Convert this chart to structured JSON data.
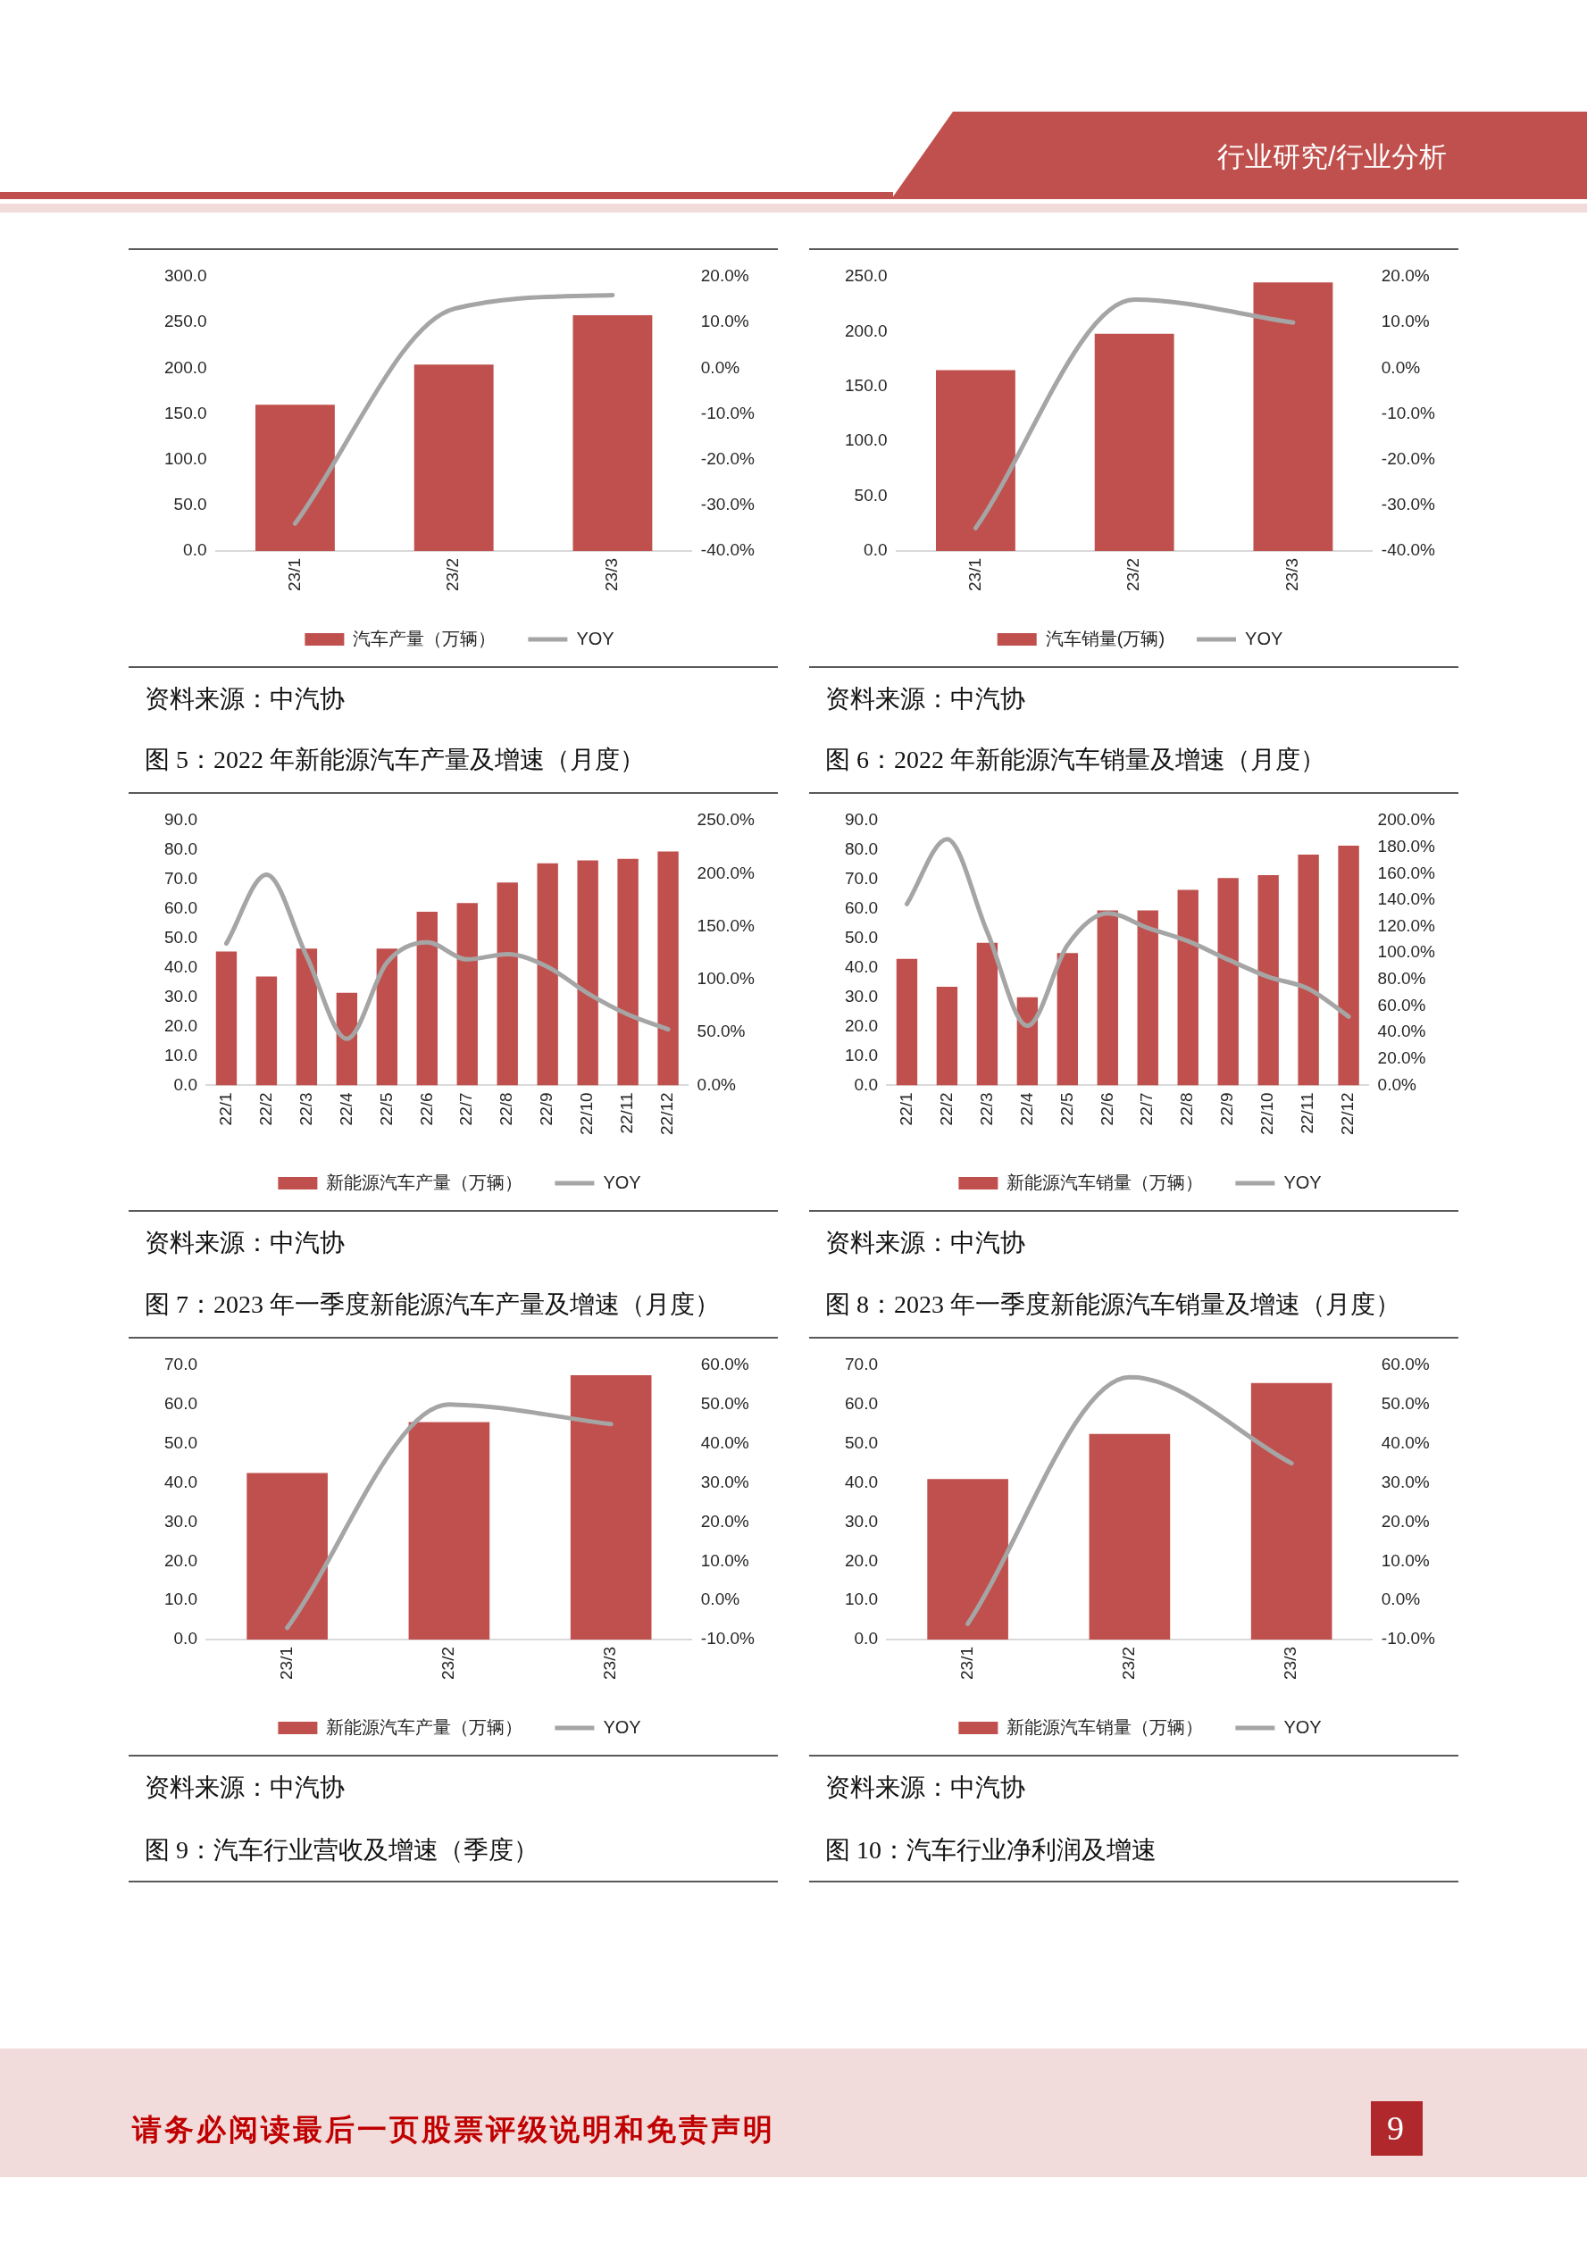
{
  "chart_data": [
    {
      "type": "bar",
      "categories": [
        "23/1",
        "23/2",
        "23/3"
      ],
      "series": [
        {
          "name": "汽车产量（万辆）",
          "color": "#c0504d",
          "values": [
            160,
            204,
            258
          ]
        },
        {
          "name": "YOY",
          "type": "line",
          "color": "#a5a5a5",
          "axis": "y2",
          "values": [
            -34,
            13,
            16
          ]
        }
      ],
      "ylim": [
        0,
        300
      ],
      "yticks": [
        {
          "value": 0,
          "label": "0.0"
        },
        {
          "value": 50,
          "label": "50.0"
        },
        {
          "value": 100,
          "label": "100.0"
        },
        {
          "value": 150,
          "label": "150.0"
        },
        {
          "value": 200,
          "label": "200.0"
        },
        {
          "value": 250,
          "label": "250.0"
        },
        {
          "value": 300,
          "label": "300.0"
        }
      ],
      "y2lim": [
        -40,
        20
      ],
      "y2ticks": [
        {
          "value": -40,
          "label": "-40.0%"
        },
        {
          "value": -30,
          "label": "-30.0%"
        },
        {
          "value": -20,
          "label": "-20.0%"
        },
        {
          "value": -10,
          "label": "-10.0%"
        },
        {
          "value": 0,
          "label": "0.0%"
        },
        {
          "value": 10,
          "label": "10.0%"
        },
        {
          "value": 20,
          "label": "20.0%"
        }
      ],
      "legend": "bottom",
      "marker": "none",
      "annotations": [
        "资料来源：中汽协",
        "行业研究/行业分析",
        "请务必阅读最后一页股票评级说明和免责声明",
        "9"
      ]
    },
    {
      "type": "bar",
      "categories": [
        "23/1",
        "23/2",
        "23/3"
      ],
      "series": [
        {
          "name": "汽车销量(万辆)",
          "color": "#c0504d",
          "values": [
            165,
            198,
            245
          ]
        },
        {
          "name": "YOY",
          "type": "line",
          "color": "#a5a5a5",
          "axis": "y2",
          "values": [
            -35,
            15,
            10
          ]
        }
      ],
      "ylim": [
        0,
        250
      ],
      "yticks": [
        {
          "value": 0,
          "label": "0.0"
        },
        {
          "value": 50,
          "label": "50.0"
        },
        {
          "value": 100,
          "label": "100.0"
        },
        {
          "value": 150,
          "label": "150.0"
        },
        {
          "value": 200,
          "label": "200.0"
        },
        {
          "value": 250,
          "label": "250.0"
        }
      ],
      "y2lim": [
        -40,
        20
      ],
      "y2ticks": [
        {
          "value": -40,
          "label": "-40.0%"
        },
        {
          "value": -30,
          "label": "-30.0%"
        },
        {
          "value": -20,
          "label": "-20.0%"
        },
        {
          "value": -10,
          "label": "-10.0%"
        },
        {
          "value": 0,
          "label": "0.0%"
        },
        {
          "value": 10,
          "label": "10.0%"
        },
        {
          "value": 20,
          "label": "20.0%"
        }
      ],
      "legend": "bottom",
      "marker": "none",
      "annotations": [
        "资料来源：中汽协"
      ]
    },
    {
      "type": "bar",
      "title": "图 5：2022 年新能源汽车产量及增速（月度）",
      "categories": [
        "22/1",
        "22/2",
        "22/3",
        "22/4",
        "22/5",
        "22/6",
        "22/7",
        "22/8",
        "22/9",
        "22/10",
        "22/11",
        "22/12"
      ],
      "series": [
        {
          "name": "新能源汽车产量（万辆）",
          "color": "#c0504d",
          "values": [
            45.5,
            37,
            46.5,
            31.5,
            46.5,
            59,
            62,
            69,
            75.5,
            76.5,
            77,
            79.5
          ]
        },
        {
          "name": "YOY",
          "type": "line",
          "color": "#a5a5a5",
          "axis": "y2",
          "values": [
            134,
            199,
            122,
            44,
            116,
            135,
            119,
            124,
            112,
            87,
            67,
            53
          ]
        }
      ],
      "ylim": [
        0,
        90
      ],
      "yticks": [
        {
          "value": 0,
          "label": "0.0"
        },
        {
          "value": 10,
          "label": "10.0"
        },
        {
          "value": 20,
          "label": "20.0"
        },
        {
          "value": 30,
          "label": "30.0"
        },
        {
          "value": 40,
          "label": "40.0"
        },
        {
          "value": 50,
          "label": "50.0"
        },
        {
          "value": 60,
          "label": "60.0"
        },
        {
          "value": 70,
          "label": "70.0"
        },
        {
          "value": 80,
          "label": "80.0"
        },
        {
          "value": 90,
          "label": "90.0"
        }
      ],
      "y2lim": [
        0,
        250
      ],
      "y2ticks": [
        {
          "value": 0,
          "label": "0.0%"
        },
        {
          "value": 50,
          "label": "50.0%"
        },
        {
          "value": 100,
          "label": "100.0%"
        },
        {
          "value": 150,
          "label": "150.0%"
        },
        {
          "value": 200,
          "label": "200.0%"
        },
        {
          "value": 250,
          "label": "250.0%"
        }
      ],
      "legend": "bottom",
      "marker": "none",
      "annotations": [
        "资料来源：中汽协"
      ]
    },
    {
      "type": "bar",
      "title": "图 6：2022 年新能源汽车销量及增速（月度）",
      "categories": [
        "22/1",
        "22/2",
        "22/3",
        "22/4",
        "22/5",
        "22/6",
        "22/7",
        "22/8",
        "22/9",
        "22/10",
        "22/11",
        "22/12"
      ],
      "series": [
        {
          "name": "新能源汽车销量（万辆）",
          "color": "#c0504d",
          "values": [
            43,
            33.5,
            48.5,
            30,
            45,
            59.5,
            59.5,
            66.5,
            70.5,
            71.5,
            78.5,
            81.5
          ]
        },
        {
          "name": "YOY",
          "type": "line",
          "color": "#a5a5a5",
          "axis": "y2",
          "values": [
            137,
            186,
            116,
            45,
            106,
            130,
            119,
            109,
            95,
            82,
            73,
            52
          ]
        }
      ],
      "ylim": [
        0,
        90
      ],
      "yticks": [
        {
          "value": 0,
          "label": "0.0"
        },
        {
          "value": 10,
          "label": "10.0"
        },
        {
          "value": 20,
          "label": "20.0"
        },
        {
          "value": 30,
          "label": "30.0"
        },
        {
          "value": 40,
          "label": "40.0"
        },
        {
          "value": 50,
          "label": "50.0"
        },
        {
          "value": 60,
          "label": "60.0"
        },
        {
          "value": 70,
          "label": "70.0"
        },
        {
          "value": 80,
          "label": "80.0"
        },
        {
          "value": 90,
          "label": "90.0"
        }
      ],
      "y2lim": [
        0,
        200
      ],
      "y2ticks": [
        {
          "value": 0,
          "label": "0.0%"
        },
        {
          "value": 20,
          "label": "20.0%"
        },
        {
          "value": 40,
          "label": "40.0%"
        },
        {
          "value": 60,
          "label": "60.0%"
        },
        {
          "value": 80,
          "label": "80.0%"
        },
        {
          "value": 100,
          "label": "100.0%"
        },
        {
          "value": 120,
          "label": "120.0%"
        },
        {
          "value": 140,
          "label": "140.0%"
        },
        {
          "value": 160,
          "label": "160.0%"
        },
        {
          "value": 180,
          "label": "180.0%"
        },
        {
          "value": 200,
          "label": "200.0%"
        }
      ],
      "legend": "bottom",
      "marker": "none",
      "annotations": [
        "资料来源：中汽协"
      ]
    },
    {
      "type": "bar",
      "title": "图 7：2023 年一季度新能源汽车产量及增速（月度）",
      "categories": [
        "23/1",
        "23/2",
        "23/3"
      ],
      "series": [
        {
          "name": "新能源汽车产量（万辆）",
          "color": "#c0504d",
          "values": [
            42.5,
            55.5,
            67.5
          ]
        },
        {
          "name": "YOY",
          "type": "line",
          "color": "#a5a5a5",
          "axis": "y2",
          "values": [
            -7,
            50,
            45
          ]
        }
      ],
      "ylim": [
        0,
        70
      ],
      "yticks": [
        {
          "value": 0,
          "label": "0.0"
        },
        {
          "value": 10,
          "label": "10.0"
        },
        {
          "value": 20,
          "label": "20.0"
        },
        {
          "value": 30,
          "label": "30.0"
        },
        {
          "value": 40,
          "label": "40.0"
        },
        {
          "value": 50,
          "label": "50.0"
        },
        {
          "value": 60,
          "label": "60.0"
        },
        {
          "value": 70,
          "label": "70.0"
        }
      ],
      "y2lim": [
        -10,
        60
      ],
      "y2ticks": [
        {
          "value": -10,
          "label": "-10.0%"
        },
        {
          "value": 0,
          "label": "0.0%"
        },
        {
          "value": 10,
          "label": "10.0%"
        },
        {
          "value": 20,
          "label": "20.0%"
        },
        {
          "value": 30,
          "label": "30.0%"
        },
        {
          "value": 40,
          "label": "40.0%"
        },
        {
          "value": 50,
          "label": "50.0%"
        },
        {
          "value": 60,
          "label": "60.0%"
        }
      ],
      "legend": "bottom",
      "marker": "none",
      "annotations": [
        "资料来源：中汽协",
        "图 9：汽车行业营收及增速（季度）"
      ]
    },
    {
      "type": "bar",
      "title": "图 8：2023 年一季度新能源汽车销量及增速（月度）",
      "categories": [
        "23/1",
        "23/2",
        "23/3"
      ],
      "series": [
        {
          "name": "新能源汽车销量（万辆）",
          "color": "#c0504d",
          "values": [
            41,
            52.5,
            65.5
          ]
        },
        {
          "name": "YOY",
          "type": "line",
          "color": "#a5a5a5",
          "axis": "y2",
          "values": [
            -6,
            57,
            35
          ]
        }
      ],
      "ylim": [
        0,
        70
      ],
      "yticks": [
        {
          "value": 0,
          "label": "0.0"
        },
        {
          "value": 10,
          "label": "10.0"
        },
        {
          "value": 20,
          "label": "20.0"
        },
        {
          "value": 30,
          "label": "30.0"
        },
        {
          "value": 40,
          "label": "40.0"
        },
        {
          "value": 50,
          "label": "50.0"
        },
        {
          "value": 60,
          "label": "60.0"
        },
        {
          "value": 70,
          "label": "70.0"
        }
      ],
      "y2lim": [
        -10,
        60
      ],
      "y2ticks": [
        {
          "value": -10,
          "label": "-10.0%"
        },
        {
          "value": 0,
          "label": "0.0%"
        },
        {
          "value": 10,
          "label": "10.0%"
        },
        {
          "value": 20,
          "label": "20.0%"
        },
        {
          "value": 30,
          "label": "30.0%"
        },
        {
          "value": 40,
          "label": "40.0%"
        },
        {
          "value": 50,
          "label": "50.0%"
        },
        {
          "value": 60,
          "label": "60.0%"
        }
      ],
      "legend": "bottom",
      "marker": "none",
      "annotations": [
        "资料来源：中汽协",
        "图 10：汽车行业净利润及增速"
      ]
    }
  ]
}
